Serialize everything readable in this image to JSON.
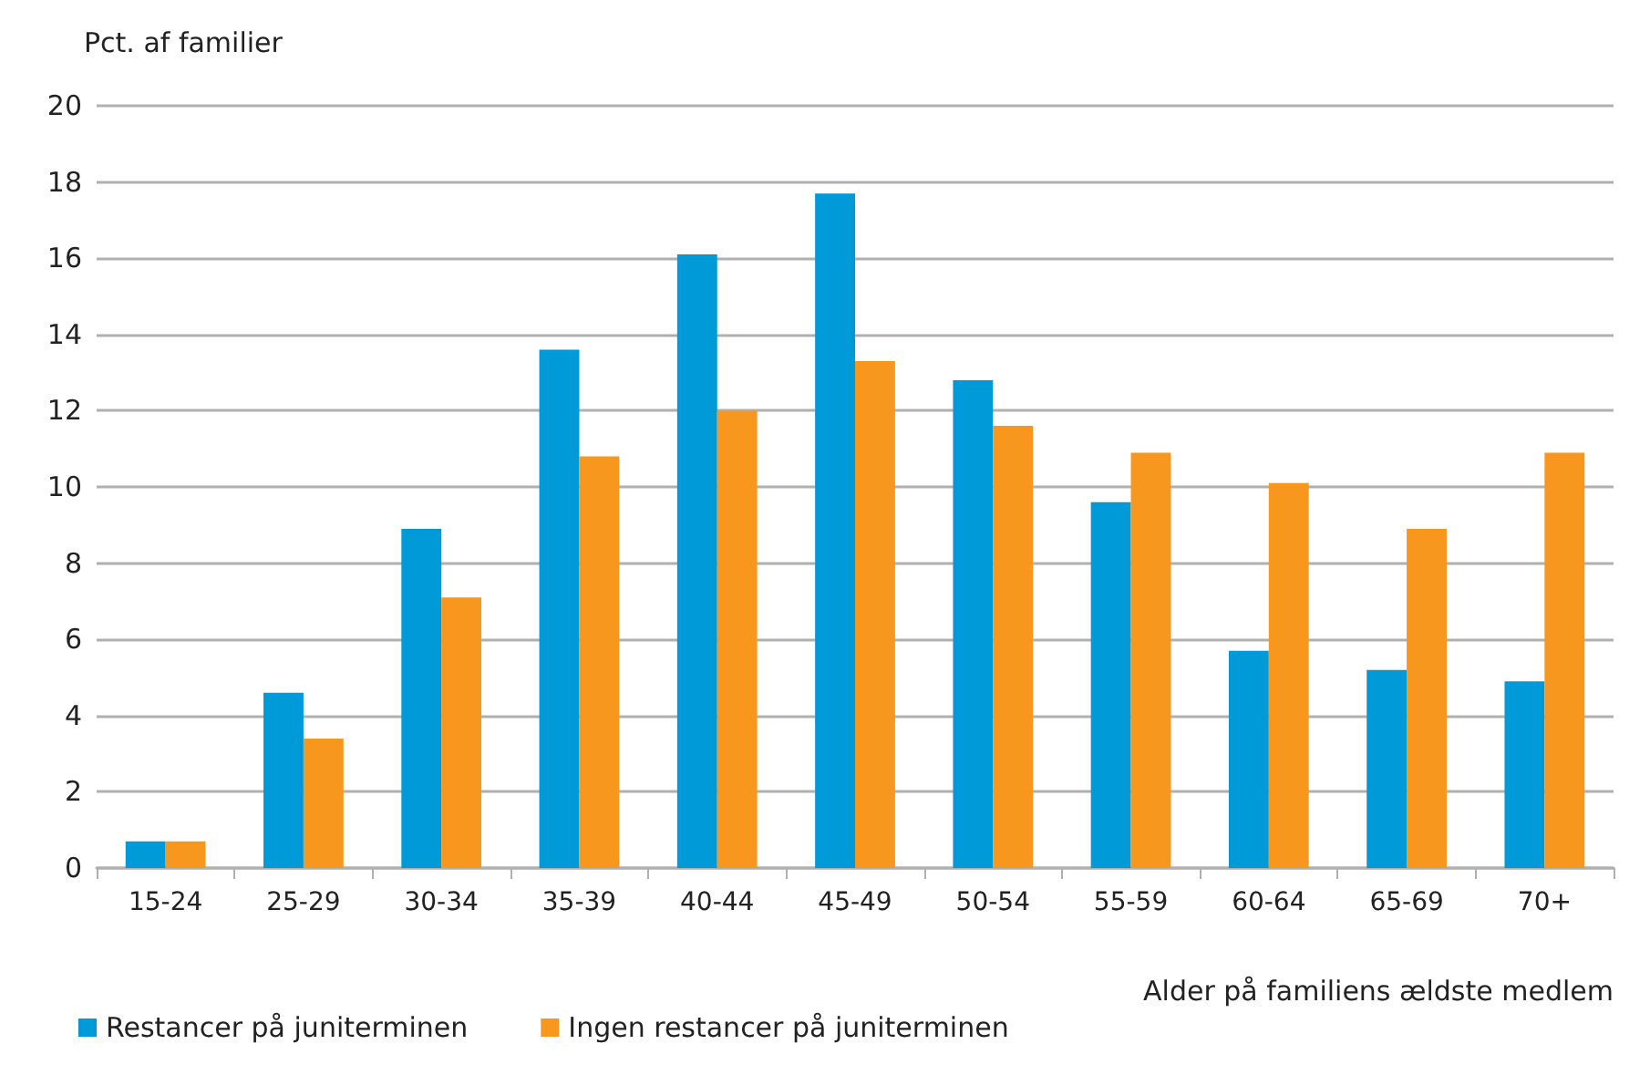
{
  "chart_data": {
    "type": "bar",
    "ylabel": "Pct. af familier",
    "xlabel": "Alder på familiens ældste medlem",
    "categories": [
      "15-24",
      "25-29",
      "30-34",
      "35-39",
      "40-44",
      "45-49",
      "50-54",
      "55-59",
      "60-64",
      "65-69",
      "70+"
    ],
    "series": [
      {
        "name": "Restancer på juniterminen",
        "color": "#009ad8",
        "values": [
          0.7,
          4.6,
          8.9,
          13.6,
          16.1,
          17.7,
          12.8,
          9.6,
          5.7,
          5.2,
          4.9
        ]
      },
      {
        "name": "Ingen restancer på juniterminen",
        "color": "#f7971d",
        "values": [
          0.7,
          3.4,
          7.1,
          10.8,
          12.0,
          13.3,
          11.6,
          10.9,
          10.1,
          8.9,
          10.9
        ]
      }
    ],
    "ylim": [
      0,
      20
    ],
    "yticks": [
      0,
      2,
      4,
      6,
      8,
      10,
      12,
      14,
      16,
      18,
      20
    ],
    "grid": "y",
    "legend": "bottom left"
  }
}
